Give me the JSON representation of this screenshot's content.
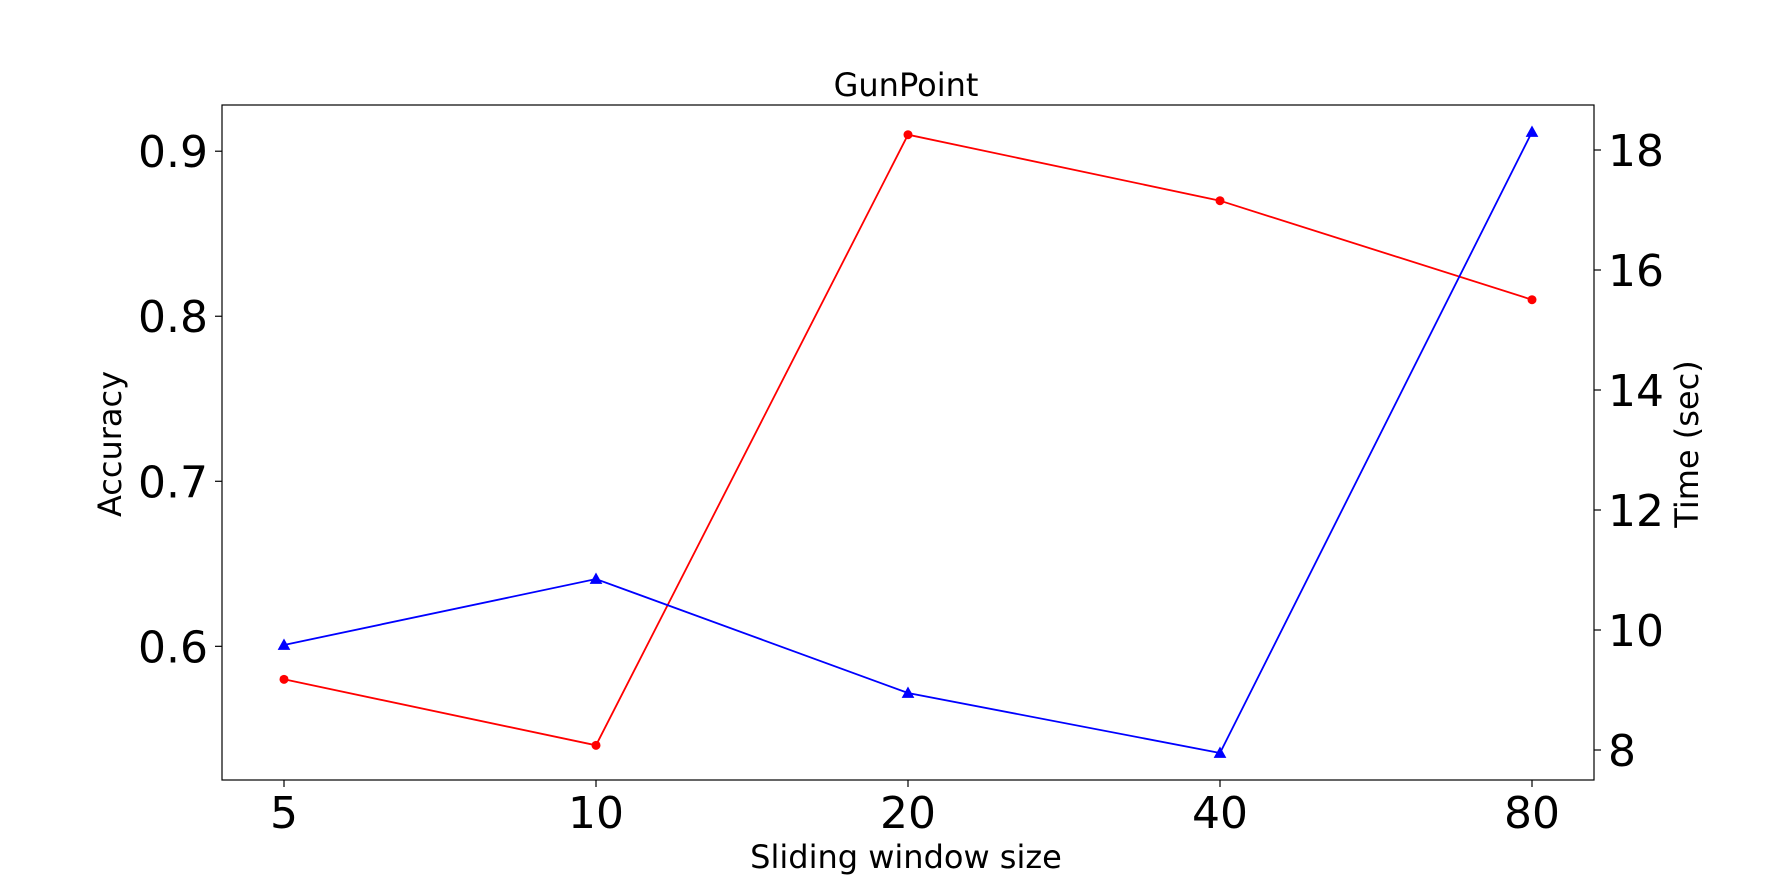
{
  "chart_data": {
    "type": "line",
    "title": "GunPoint",
    "xlabel": "Sliding window size",
    "ylabel_left": "Accuracy",
    "ylabel_right": "Time (sec)",
    "categories": [
      "5",
      "10",
      "20",
      "40",
      "80"
    ],
    "x": [
      5,
      10,
      20,
      40,
      80
    ],
    "y_left_ticks": [
      "0.6",
      "0.7",
      "0.8",
      "0.9"
    ],
    "y_right_ticks": [
      "8",
      "10",
      "12",
      "14",
      "16",
      "18"
    ],
    "ylim_left": [
      0.519,
      0.928
    ],
    "ylim_right": [
      7.5,
      18.75
    ],
    "grid": false,
    "series": [
      {
        "axis": "left",
        "color": "#ff0000",
        "marker": "circle",
        "values": [
          0.58,
          0.54,
          0.91,
          0.87,
          0.81
        ]
      },
      {
        "axis": "right",
        "color": "#0000ff",
        "marker": "triangle",
        "values": [
          9.75,
          10.85,
          8.95,
          7.95,
          18.3
        ]
      }
    ]
  }
}
